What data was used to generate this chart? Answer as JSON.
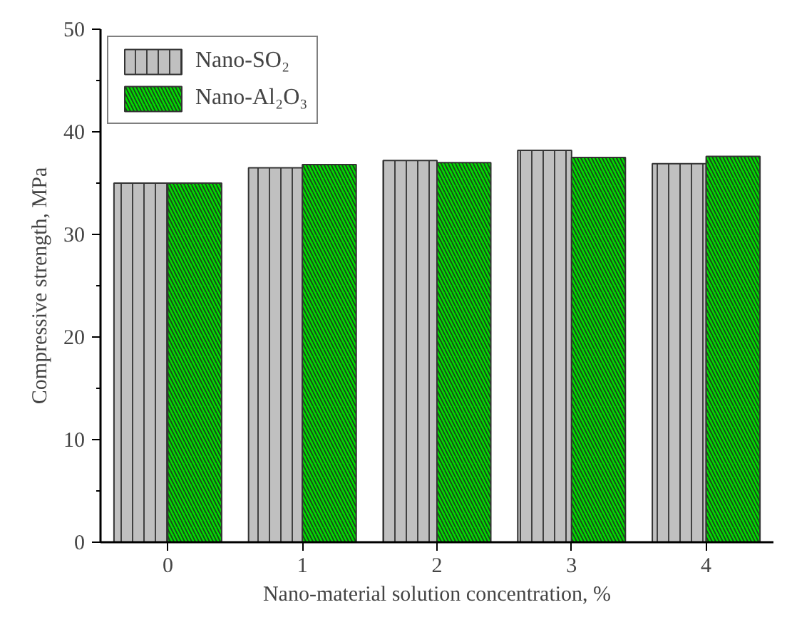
{
  "chart_data": {
    "type": "bar",
    "xlabel": "Nano-material solution concentration, %",
    "ylabel": "Compressive strength, MPa",
    "categories": [
      "0",
      "1",
      "2",
      "3",
      "4"
    ],
    "series": [
      {
        "name": "Nano-SO₂",
        "color": "#c0c0c0",
        "values": [
          35.0,
          36.5,
          37.2,
          38.2,
          36.9
        ]
      },
      {
        "name": "Nano-Al₂O₃",
        "color": "#00e000",
        "values": [
          35.0,
          36.8,
          37.0,
          37.5,
          37.6
        ]
      }
    ],
    "ylim": [
      0,
      50
    ],
    "yticks": [
      0,
      10,
      20,
      30,
      40,
      50
    ],
    "grid": false,
    "legend": "top left"
  }
}
